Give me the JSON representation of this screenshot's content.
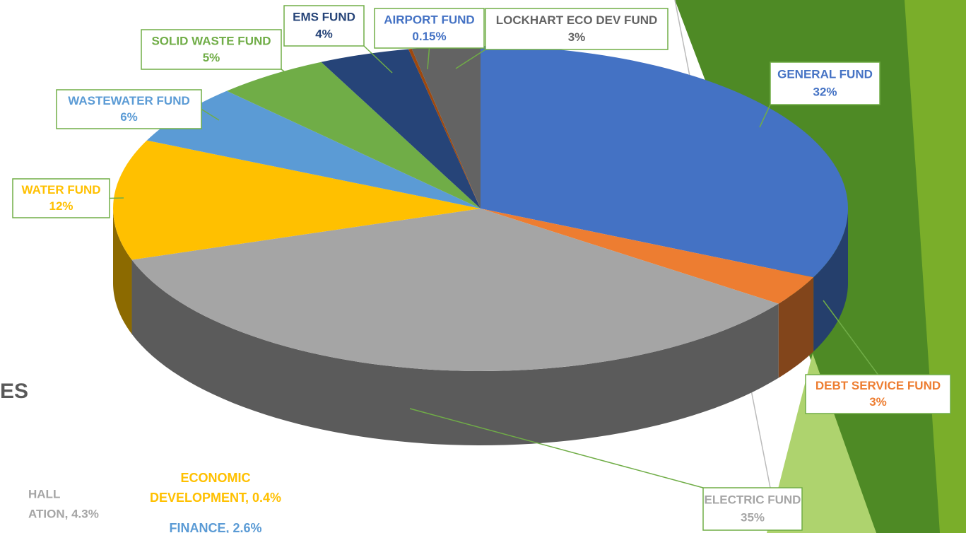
{
  "chart_data": {
    "type": "pie",
    "categories": [
      "GENERAL FUND",
      "DEBT SERVICE FUND",
      "ELECTRIC FUND",
      "WATER FUND",
      "WASTEWATER FUND",
      "SOLID WASTE FUND",
      "EMS FUND",
      "AIRPORT FUND",
      "LOCKHART ECO DEV FUND"
    ],
    "values": [
      32,
      3,
      35,
      12,
      6,
      5,
      4,
      0.15,
      3
    ],
    "value_labels": [
      "32%",
      "3%",
      "35%",
      "12%",
      "6%",
      "5%",
      "4%",
      "0.15%",
      "3%"
    ],
    "colors": [
      "#4472c4",
      "#ed7d31",
      "#a5a5a5",
      "#ffc000",
      "#5b9bd5",
      "#70ad47",
      "#264478",
      "#9e480e",
      "#636363"
    ],
    "label_colors": [
      "#4472c4",
      "#ed7d31",
      "#a5a5a5",
      "#ffc000",
      "#5b9bd5",
      "#70ad47",
      "#264478",
      "#4472c4",
      "#636363"
    ]
  },
  "fragments": [
    "ES",
    "HALL",
    "ATION, 4.3%",
    "ECONOMIC",
    "DEVELOPMENT,  0.4%",
    "FINANCE, 2.6%"
  ]
}
